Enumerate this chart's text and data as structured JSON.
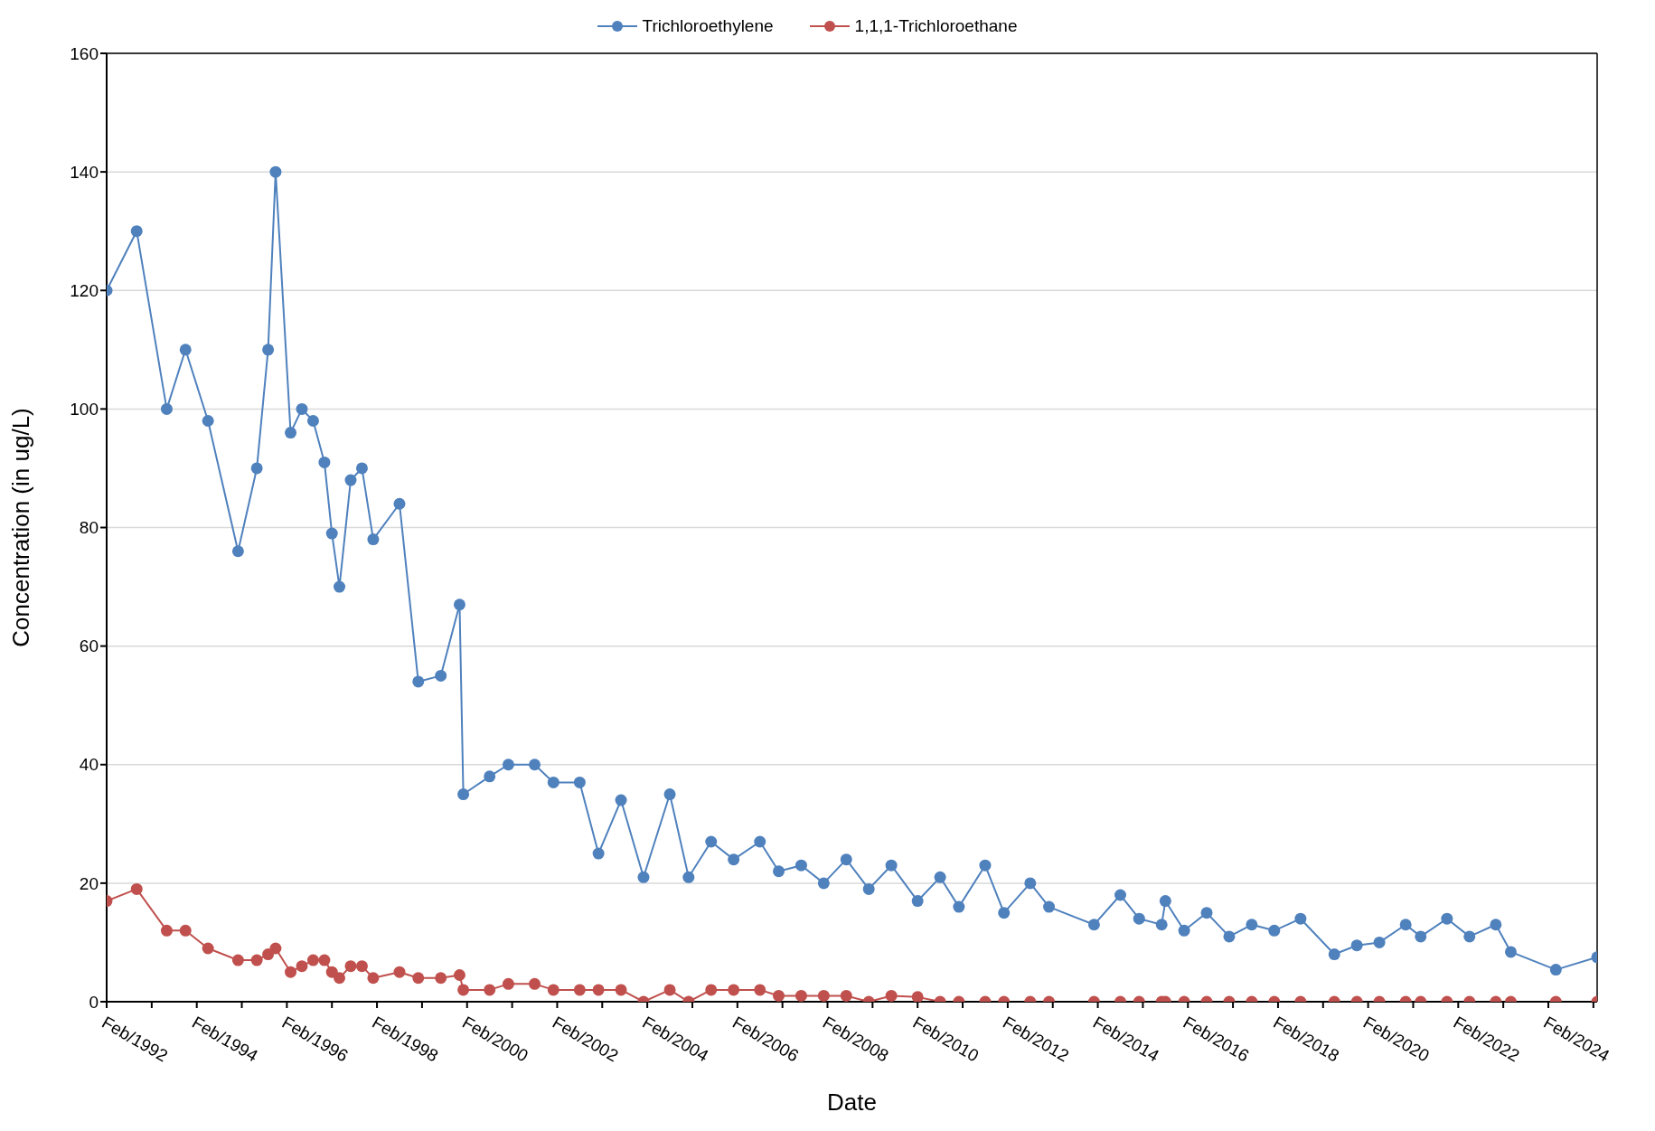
{
  "chart_data": {
    "type": "line",
    "xlabel": "Date",
    "ylabel": "Concentration (in ug/L)",
    "x": [
      "1992-02",
      "1992-10",
      "1993-06",
      "1993-11",
      "1994-05",
      "1995-01",
      "1995-06",
      "1995-09",
      "1995-11",
      "1996-03",
      "1996-06",
      "1996-09",
      "1996-12",
      "1997-02",
      "1997-04",
      "1997-07",
      "1997-10",
      "1998-01",
      "1998-08",
      "1999-01",
      "1999-07",
      "1999-12",
      "2000-01",
      "2000-08",
      "2001-01",
      "2001-08",
      "2002-01",
      "2002-08",
      "2003-01",
      "2003-07",
      "2004-01",
      "2004-08",
      "2005-01",
      "2005-07",
      "2006-01",
      "2006-08",
      "2007-01",
      "2007-07",
      "2008-01",
      "2008-07",
      "2009-01",
      "2009-07",
      "2010-02",
      "2010-08",
      "2011-01",
      "2011-08",
      "2012-01",
      "2012-08",
      "2013-01",
      "2014-01",
      "2014-08",
      "2015-01",
      "2015-07",
      "2015-08",
      "2016-01",
      "2016-07",
      "2017-01",
      "2017-07",
      "2018-01",
      "2018-08",
      "2019-05",
      "2019-11",
      "2020-05",
      "2020-12",
      "2021-04",
      "2021-11",
      "2022-05",
      "2022-12",
      "2023-04",
      "2024-04",
      "2025-03"
    ],
    "series": [
      {
        "name": "Trichloroethylene",
        "color": "#4f81bd",
        "values": [
          120,
          130,
          100,
          110,
          98,
          76,
          90,
          110,
          140,
          96,
          100,
          98,
          91,
          79,
          70,
          88,
          90,
          78,
          84,
          54,
          55,
          67,
          35,
          38,
          40,
          40,
          37,
          37,
          25,
          34,
          21,
          35,
          21,
          27,
          24,
          27,
          22,
          23,
          20,
          24,
          19,
          23,
          17,
          21,
          16,
          23,
          15,
          20,
          16,
          13,
          18,
          14,
          13,
          17,
          12,
          15,
          11,
          13,
          12,
          14,
          8,
          9.5,
          10,
          13,
          11,
          14,
          11,
          13,
          8.4,
          5.4,
          7.5
        ]
      },
      {
        "name": "1,1,1-Trichloroethane",
        "color": "#c0504d",
        "values": [
          17,
          19,
          12,
          12,
          9,
          7,
          7,
          8,
          9,
          5,
          6,
          7,
          7,
          5,
          4,
          6,
          6,
          4,
          5,
          4,
          4,
          4.5,
          2,
          2,
          3,
          3,
          2,
          2,
          2,
          2,
          0,
          2,
          0,
          2,
          2,
          2,
          1,
          1,
          1,
          1,
          0,
          1,
          0.8,
          0,
          0,
          0,
          0,
          0,
          0,
          0,
          0,
          0,
          0,
          0,
          0,
          0,
          0,
          0,
          0,
          0,
          0,
          0,
          0,
          0,
          0,
          0,
          0,
          0,
          0,
          0,
          0
        ]
      }
    ],
    "xlim": [
      "1992-02",
      "2025-03"
    ],
    "xticks": [
      {
        "value": "1992-02",
        "label": "Feb/1992"
      },
      {
        "value": "1993-02",
        "label": null
      },
      {
        "value": "1994-02",
        "label": "Feb/1994"
      },
      {
        "value": "1995-02",
        "label": null
      },
      {
        "value": "1996-02",
        "label": "Feb/1996"
      },
      {
        "value": "1997-02",
        "label": null
      },
      {
        "value": "1998-02",
        "label": "Feb/1998"
      },
      {
        "value": "1999-02",
        "label": null
      },
      {
        "value": "2000-02",
        "label": "Feb/2000"
      },
      {
        "value": "2001-02",
        "label": null
      },
      {
        "value": "2002-02",
        "label": "Feb/2002"
      },
      {
        "value": "2003-02",
        "label": null
      },
      {
        "value": "2004-02",
        "label": "Feb/2004"
      },
      {
        "value": "2005-02",
        "label": null
      },
      {
        "value": "2006-02",
        "label": "Feb/2006"
      },
      {
        "value": "2007-02",
        "label": null
      },
      {
        "value": "2008-02",
        "label": "Feb/2008"
      },
      {
        "value": "2009-02",
        "label": null
      },
      {
        "value": "2010-02",
        "label": "Feb/2010"
      },
      {
        "value": "2011-02",
        "label": null
      },
      {
        "value": "2012-02",
        "label": "Feb/2012"
      },
      {
        "value": "2013-02",
        "label": null
      },
      {
        "value": "2014-02",
        "label": "Feb/2014"
      },
      {
        "value": "2015-02",
        "label": null
      },
      {
        "value": "2016-02",
        "label": "Feb/2016"
      },
      {
        "value": "2017-02",
        "label": null
      },
      {
        "value": "2018-02",
        "label": "Feb/2018"
      },
      {
        "value": "2019-02",
        "label": null
      },
      {
        "value": "2020-02",
        "label": "Feb/2020"
      },
      {
        "value": "2021-02",
        "label": null
      },
      {
        "value": "2022-02",
        "label": "Feb/2022"
      },
      {
        "value": "2023-02",
        "label": null
      },
      {
        "value": "2024-02",
        "label": "Feb/2024"
      },
      {
        "value": "2025-02",
        "label": null
      }
    ],
    "ylim": [
      0,
      160
    ],
    "yticks": [
      0,
      20,
      40,
      60,
      80,
      100,
      120,
      140,
      160
    ],
    "grid": "y",
    "legend": "top",
    "marker": "circle",
    "line_style": "solid"
  }
}
